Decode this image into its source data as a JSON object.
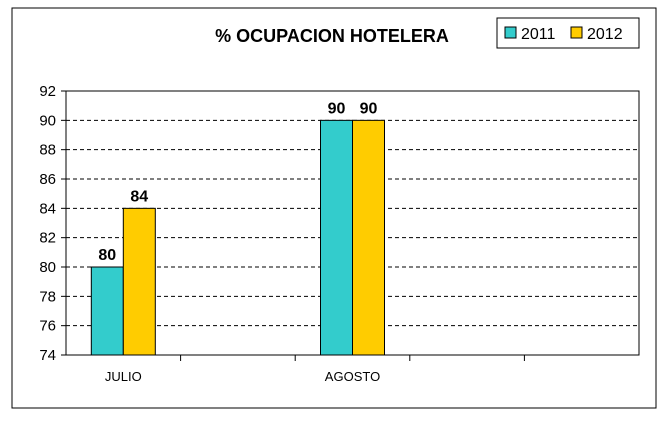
{
  "chart_data": {
    "type": "bar",
    "title": "% OCUPACION HOTELERA",
    "xlabel": "",
    "ylabel": "",
    "categories": [
      "JULIO",
      "",
      "AGOSTO",
      "",
      ""
    ],
    "series": [
      {
        "name": "2011",
        "values": [
          80,
          null,
          90,
          null,
          null
        ],
        "color": "#33CCCC"
      },
      {
        "name": "2012",
        "values": [
          84,
          null,
          90,
          null,
          null
        ],
        "color": "#FFCC00"
      }
    ],
    "ylim": [
      74,
      92
    ],
    "yticks": [
      74,
      76,
      78,
      80,
      82,
      84,
      86,
      88,
      90,
      92
    ],
    "grid": true,
    "legend_position": "top-right",
    "data_labels": true
  }
}
